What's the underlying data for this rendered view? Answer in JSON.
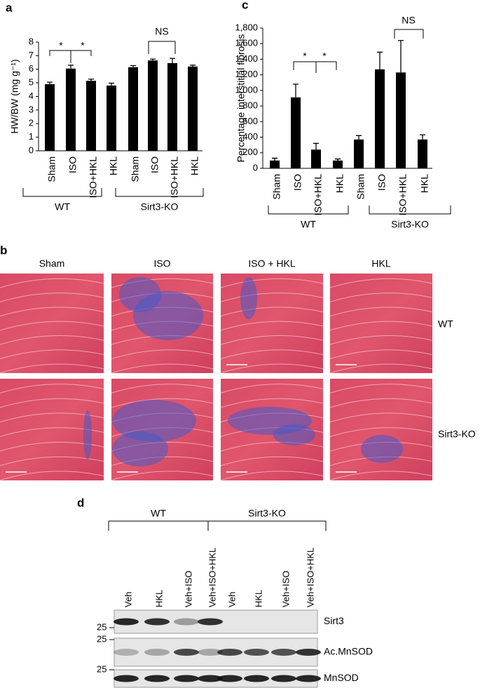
{
  "chart_data": [
    {
      "type": "bar",
      "label": "a",
      "ylabel": "HW/BW (mg g⁻¹)",
      "categories": [
        "Sham",
        "ISO",
        "ISO+HKL",
        "HKL",
        "Sham",
        "ISO",
        "ISO+HKL",
        "HKL"
      ],
      "values": [
        4.9,
        6.05,
        5.15,
        4.8,
        6.15,
        6.65,
        6.45,
        6.2
      ],
      "errors": [
        0.15,
        0.25,
        0.12,
        0.18,
        0.12,
        0.1,
        0.35,
        0.1
      ],
      "color": "#000000",
      "ylim": [
        0,
        8
      ],
      "yticks": [
        0,
        1,
        2,
        3,
        4,
        5,
        6,
        7,
        8
      ],
      "groups": [
        "WT",
        "Sirt3-KO"
      ],
      "annotations": [
        "*",
        "*",
        "NS"
      ]
    },
    {
      "type": "bar",
      "label": "c",
      "ylabel": "Percentage interstitial fibrosis",
      "categories": [
        "Sham",
        "ISO",
        "ISO+HKL",
        "HKL",
        "Sham",
        "ISO",
        "ISO+HKL",
        "HKL"
      ],
      "values": [
        100,
        910,
        240,
        100,
        370,
        1270,
        1230,
        370
      ],
      "errors": [
        30,
        170,
        80,
        20,
        50,
        220,
        410,
        60
      ],
      "color": "#000000",
      "ylim": [
        0,
        1800
      ],
      "yticks": [
        0,
        200,
        400,
        600,
        800,
        {
          "value": 1000,
          "label": "1,000"
        },
        {
          "value": 1200,
          "label": "1,200"
        },
        {
          "value": 1400,
          "label": "1,400"
        },
        {
          "value": 1600,
          "label": "1,600"
        },
        {
          "value": 1800,
          "label": "1,800"
        }
      ],
      "groups": [
        "WT",
        "Sirt3-KO"
      ],
      "annotations": [
        "*",
        "*",
        "NS"
      ]
    }
  ],
  "histology": {
    "label": "b",
    "columns": [
      "Sham",
      "ISO",
      "ISO + HKL",
      "HKL"
    ],
    "rows": [
      "WT",
      "Sirt3-KO"
    ]
  },
  "blot": {
    "label": "d",
    "groups": [
      "WT",
      "Sirt3-KO"
    ],
    "lanes": [
      "Veh",
      "HKL",
      "Veh+ISO",
      "Veh+ISO+HKL",
      "Veh",
      "HKL",
      "Veh+ISO",
      "Veh+ISO+HKL"
    ],
    "proteins": [
      "Sirt3",
      "Ac.MnSOD",
      "MnSOD"
    ],
    "markers": [
      25,
      25,
      25
    ]
  }
}
